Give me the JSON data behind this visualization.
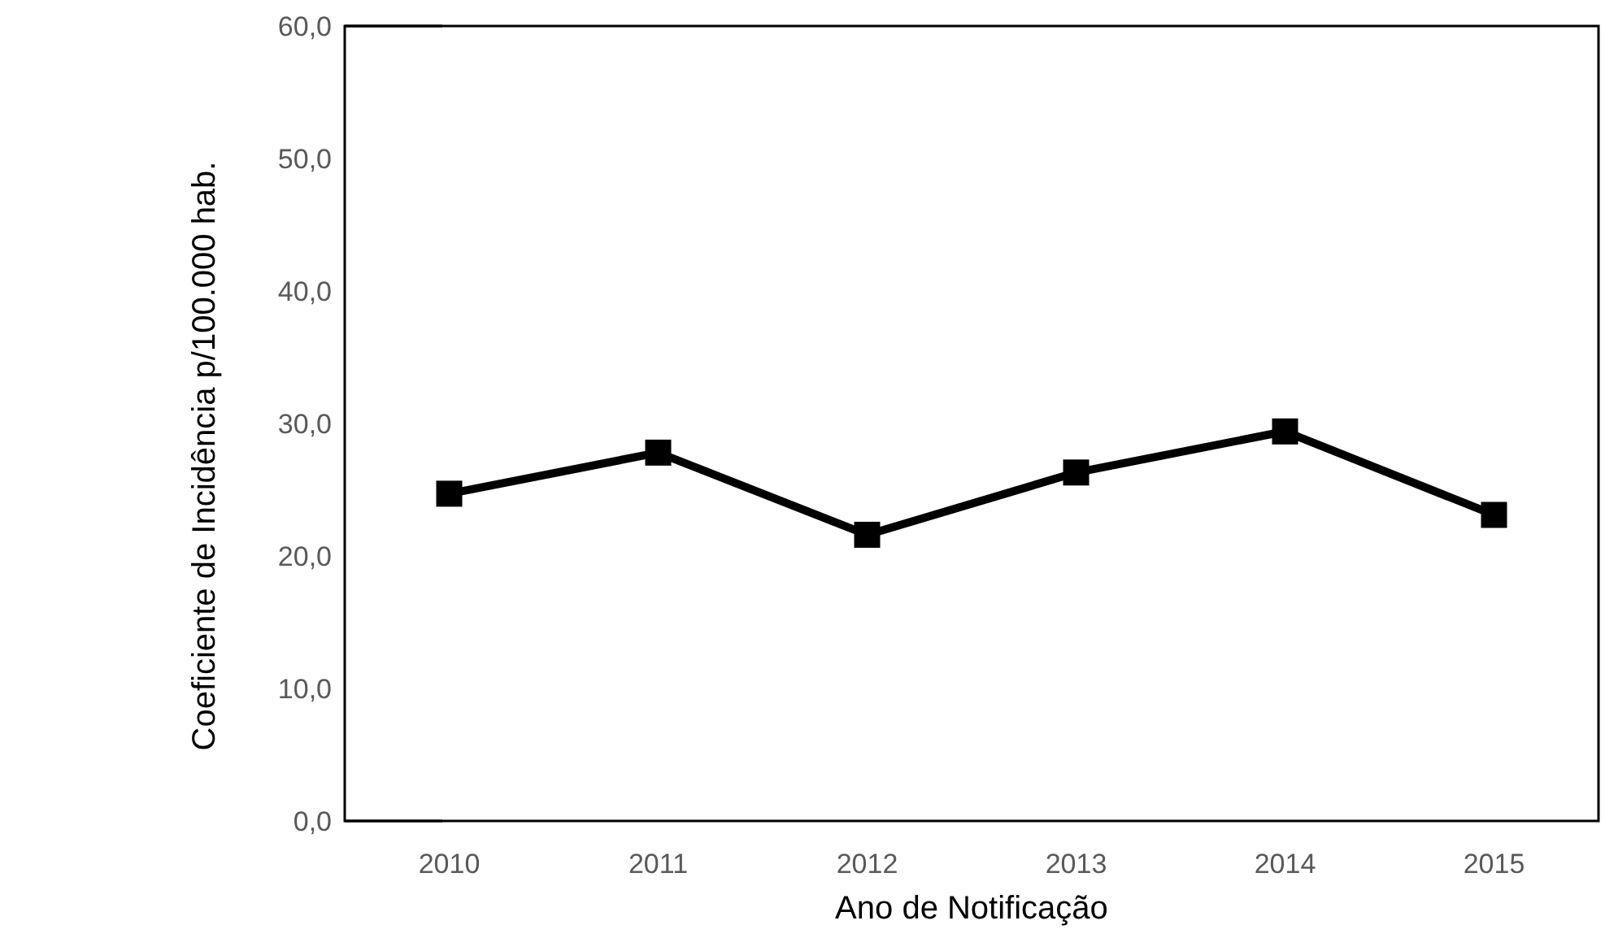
{
  "chart_data": {
    "type": "line",
    "xlabel": "Ano de Notificação",
    "ylabel": "Coeficiente de Incidência p/100.000 hab.",
    "categories": [
      "2010",
      "2011",
      "2012",
      "2013",
      "2014",
      "2015"
    ],
    "series": [
      {
        "color": "#000000",
        "values": [
          24.7,
          27.8,
          21.6,
          26.3,
          29.4,
          23.1
        ]
      }
    ],
    "ylim": [
      0,
      60
    ],
    "yticks": [
      {
        "value": 0,
        "label": "0,0"
      },
      {
        "value": 10,
        "label": "10,0"
      },
      {
        "value": 20,
        "label": "20,0"
      },
      {
        "value": 30,
        "label": "30,0"
      },
      {
        "value": 40,
        "label": "40,0"
      },
      {
        "value": 50,
        "label": "50,0"
      },
      {
        "value": 60,
        "label": "60,0"
      }
    ],
    "marker": "square",
    "line_style": "solid",
    "grid": false
  }
}
